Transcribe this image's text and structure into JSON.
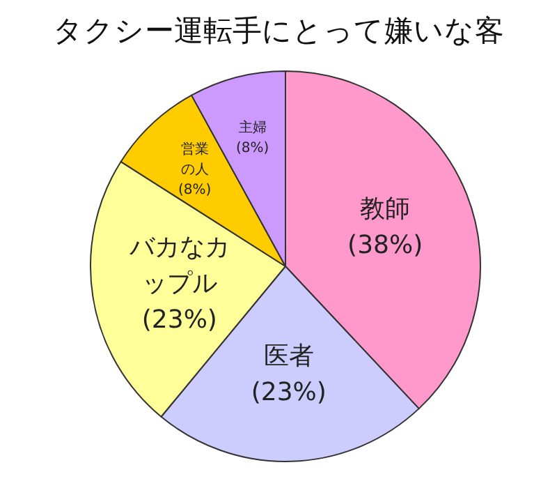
{
  "chart_data": {
    "type": "pie",
    "title": "タクシー運転手にとって嫌いな客",
    "categories": [
      "教師",
      "医者",
      "バカなカップル",
      "営業の人",
      "主婦"
    ],
    "values": [
      38,
      23,
      23,
      8,
      8
    ],
    "value_labels": [
      "(38%)",
      "(23%)",
      "(23%)",
      "(8%)",
      "(8%)"
    ],
    "colors": [
      "#ff99cc",
      "#ccccff",
      "#ffff99",
      "#ffcc00",
      "#cc99ff"
    ]
  }
}
